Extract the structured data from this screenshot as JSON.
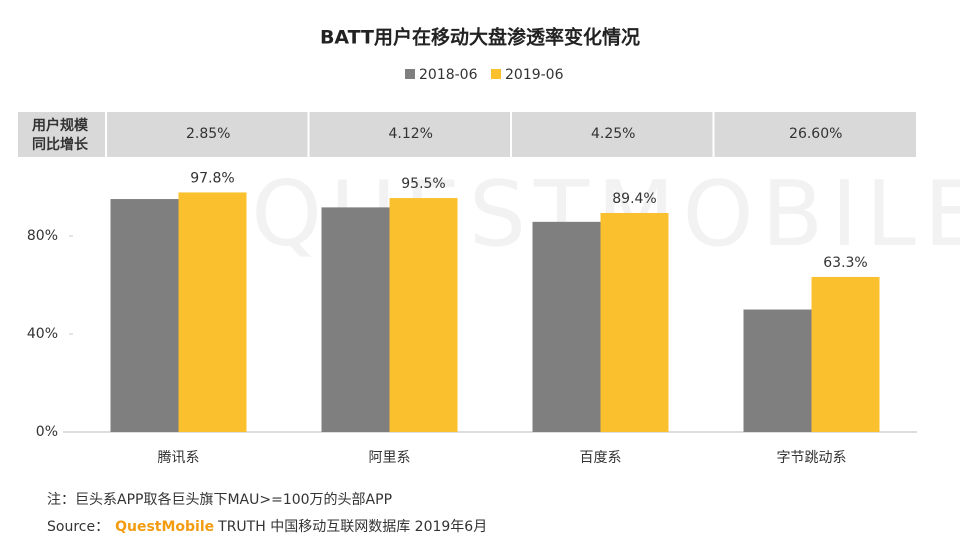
{
  "chart_data": {
    "type": "bar",
    "title": "BATT用户在移动大盘渗透率变化情况",
    "watermark": "QUESTMOBILE",
    "categories": [
      "腾讯系",
      "阿里系",
      "百度系",
      "字节跳动系"
    ],
    "series": [
      {
        "name": "2018-06",
        "color": "#7f7f7f",
        "values": [
          95.1,
          91.7,
          85.8,
          50.0
        ]
      },
      {
        "name": "2019-06",
        "color": "#fbc02d",
        "values": [
          97.8,
          95.5,
          89.4,
          63.3
        ],
        "value_labels": [
          "97.8%",
          "95.5%",
          "89.4%",
          "63.3%"
        ]
      }
    ],
    "ylim": [
      0,
      109
    ],
    "yticks": [
      {
        "value": 0,
        "label": "0%"
      },
      {
        "value": 40,
        "label": "40%"
      },
      {
        "value": 80,
        "label": "80%"
      }
    ],
    "growth_row_label": [
      "用户规模",
      "同比增长"
    ],
    "growth_row": [
      "2.85%",
      "4.12%",
      "4.25%",
      "26.60%"
    ],
    "note": "注：巨头系APP取各巨头旗下MAU>=100万的头部APP",
    "source_prefix": "Source：",
    "source_brand": "QuestMobile",
    "source_rest": "TRUTH 中国移动互联网数据库 2019年6月"
  }
}
